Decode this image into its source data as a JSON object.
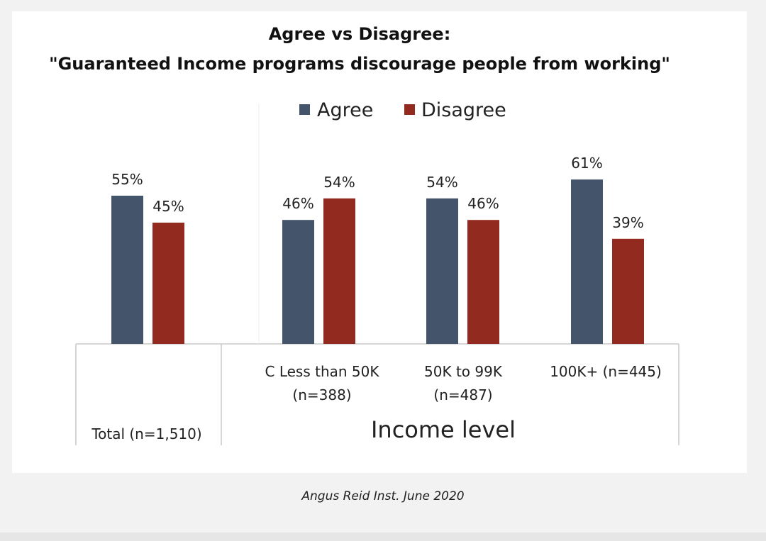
{
  "chart_data": {
    "type": "bar",
    "title": "Agree vs Disagree:",
    "subtitle": "\"Guaranteed Income programs discourage people from working\"",
    "categories": [
      {
        "line1": "Total (n=1,510)",
        "line2": ""
      },
      {
        "line1": "C  Less than 50K",
        "line2": "(n=388)"
      },
      {
        "line1": "50K to 99K",
        "line2": "(n=487)"
      },
      {
        "line1": "100K+ (n=445)",
        "line2": ""
      }
    ],
    "series": [
      {
        "name": "Agree",
        "color": "#44546a",
        "values": [
          55,
          46,
          54,
          61
        ],
        "labels": [
          "55%",
          "46%",
          "54%",
          "61%"
        ]
      },
      {
        "name": "Disagree",
        "color": "#922a1f",
        "values": [
          45,
          54,
          46,
          39
        ],
        "labels": [
          "45%",
          "54%",
          "46%",
          "39%"
        ]
      }
    ],
    "xlabel": "Income level",
    "ylabel": "",
    "ylim": [
      0,
      100
    ],
    "legend_position": "top"
  },
  "caption": "Angus Reid Inst. June 2020"
}
